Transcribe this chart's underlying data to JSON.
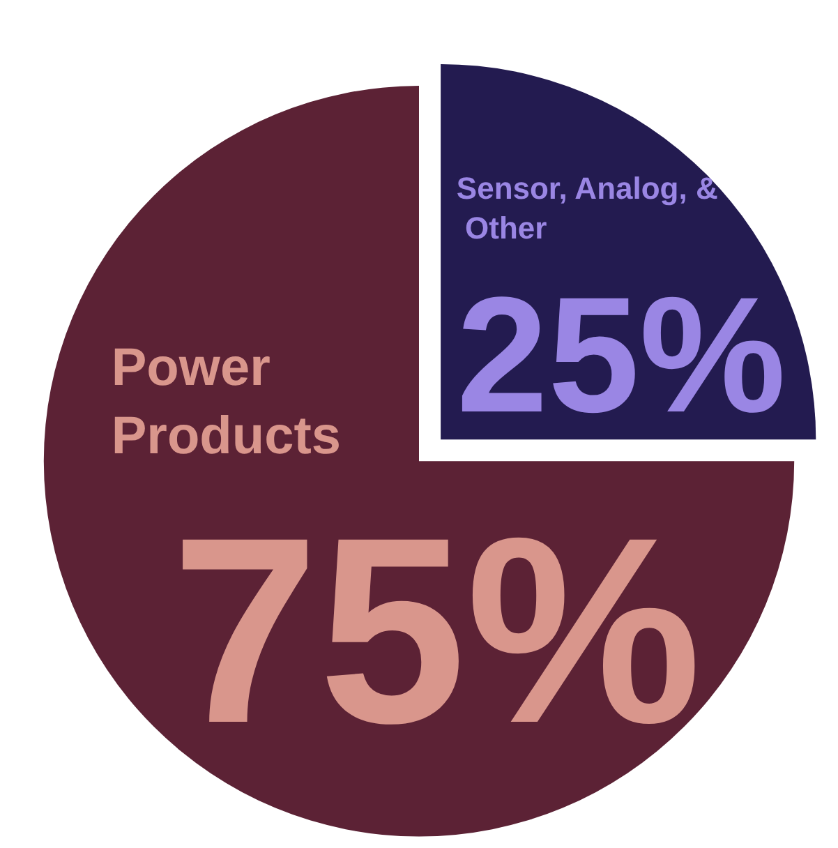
{
  "chart_data": {
    "type": "pie",
    "categories": [
      "Sensor, Analog, & Other",
      "Power Products"
    ],
    "values": [
      25,
      75
    ],
    "colors": [
      "#231b50",
      "#5c2235"
    ],
    "legend": false,
    "value_labels": [
      "25%",
      "75%"
    ]
  }
}
